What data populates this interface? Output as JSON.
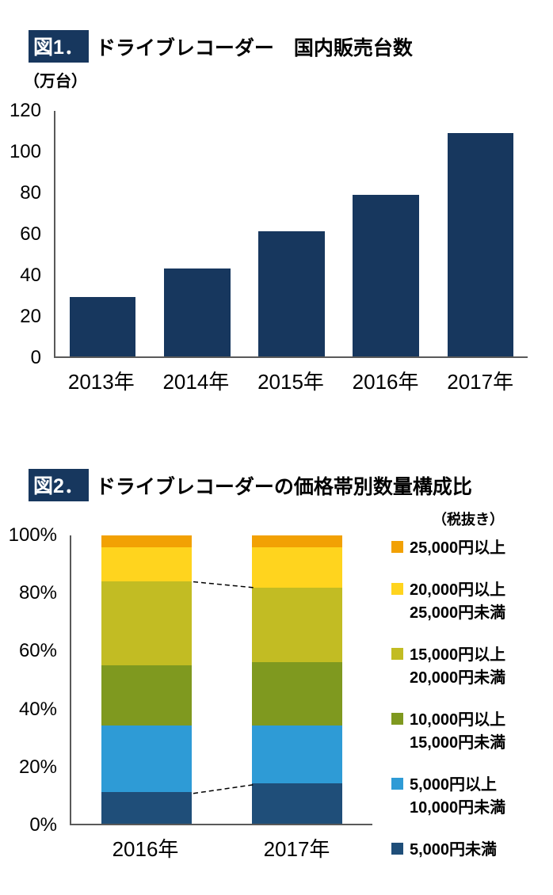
{
  "chart_data": [
    {
      "type": "bar",
      "tag": "図1．",
      "title": "ドライブレコーダー　国内販売台数",
      "ylabel": "（万台）",
      "categories": [
        "2013年",
        "2014年",
        "2015年",
        "2016年",
        "2017年"
      ],
      "values": [
        29,
        43,
        61,
        79,
        109
      ],
      "ylim": [
        0,
        120
      ],
      "yticks": [
        0,
        20,
        40,
        60,
        80,
        100,
        120
      ],
      "bar_color": "#17375E",
      "grid": false,
      "legend_position": "none"
    },
    {
      "type": "stacked-bar-percent",
      "tag": "図2．",
      "title": "ドライブレコーダーの価格帯別数量構成比",
      "note": "（税抜き）",
      "categories": [
        "2016年",
        "2017年"
      ],
      "ylim": [
        0,
        100
      ],
      "yticks": [
        "0%",
        "20%",
        "40%",
        "60%",
        "80%",
        "100%"
      ],
      "grid": false,
      "legend_position": "right",
      "series": [
        {
          "name": "5,000円未満",
          "color": "#1F4E79",
          "values": [
            11,
            14
          ]
        },
        {
          "name": "5,000円以上 10,000円未満",
          "color": "#2E9BD6",
          "values": [
            23,
            20
          ]
        },
        {
          "name": "10,000円以上 15,000円未満",
          "color": "#7F991F",
          "values": [
            21,
            22
          ]
        },
        {
          "name": "15,000円以上 20,000円未満",
          "color": "#C2BC23",
          "values": [
            29,
            26
          ]
        },
        {
          "name": "20,000円以上 25,000円未満",
          "color": "#FFD41E",
          "values": [
            12,
            14
          ]
        },
        {
          "name": "25,000円以上",
          "color": "#F2A104",
          "values": [
            4,
            4
          ]
        }
      ],
      "legend": [
        {
          "color": "#F2A104",
          "lines": [
            "25,000円以上"
          ]
        },
        {
          "color": "#FFD41E",
          "lines": [
            "20,000円以上",
            "25,000円未満"
          ]
        },
        {
          "color": "#C2BC23",
          "lines": [
            "15,000円以上",
            "20,000円未満"
          ]
        },
        {
          "color": "#7F991F",
          "lines": [
            "10,000円以上",
            "15,000円未満"
          ]
        },
        {
          "color": "#2E9BD6",
          "lines": [
            "5,000円以上",
            "10,000円未満"
          ]
        },
        {
          "color": "#1F4E79",
          "lines": [
            "5,000円未満"
          ]
        }
      ],
      "connector_boundaries": [
        0,
        3
      ]
    }
  ]
}
